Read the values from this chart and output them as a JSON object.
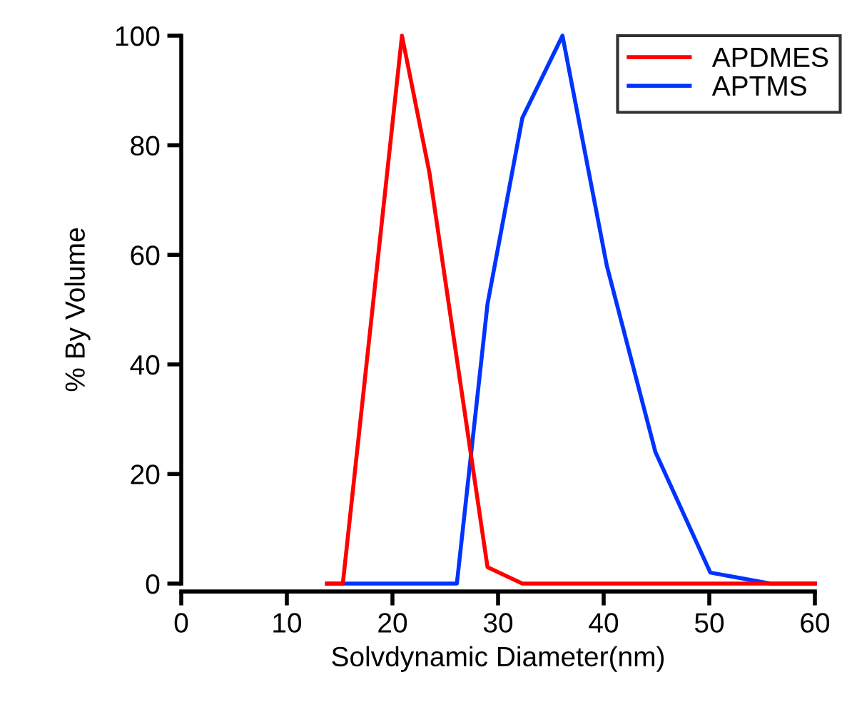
{
  "chart_data": {
    "type": "line",
    "xlabel": "Solvdynamic Diameter(nm)",
    "ylabel": "% By Volume",
    "xlim": [
      0,
      60
    ],
    "ylim": [
      0,
      100
    ],
    "xticks": [
      0,
      10,
      20,
      30,
      40,
      50,
      60
    ],
    "yticks": [
      0,
      20,
      40,
      60,
      80,
      100
    ],
    "grid": false,
    "legend": "top right",
    "marker": "none",
    "line_style": "solid",
    "series": [
      {
        "name": "APDMES",
        "color": "#ff0000",
        "x": [
          13.8,
          15.3,
          20.9,
          23.5,
          29.0,
          32.3,
          36.1,
          40.3,
          44.9,
          50.1,
          55.8,
          60
        ],
        "values": [
          0,
          0,
          100,
          75,
          3,
          0,
          0,
          0,
          0,
          0,
          0,
          0
        ]
      },
      {
        "name": "APTMS",
        "color": "#0033ff",
        "x": [
          13.8,
          15.3,
          20.9,
          26.1,
          29.0,
          32.3,
          36.1,
          40.3,
          44.9,
          50.1,
          55.8,
          60
        ],
        "values": [
          0,
          0,
          0,
          0,
          51,
          85,
          100,
          58,
          24,
          2,
          0,
          0
        ]
      }
    ]
  }
}
